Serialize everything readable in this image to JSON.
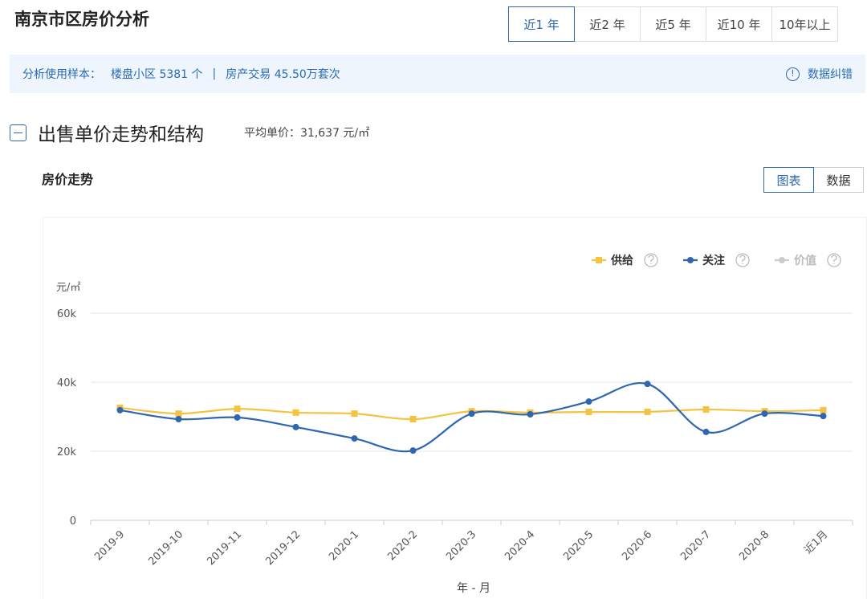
{
  "header": {
    "title": "南京市区房价分析",
    "tabs": [
      "近1 年",
      "近2 年",
      "近5 年",
      "近10 年",
      "10年以上"
    ]
  },
  "info_bar": {
    "sample_label": "分析使用样本：",
    "community": "楼盘小区 5381 个",
    "separator": "|",
    "transactions": "房产交易 45.50万套次",
    "report": "数据纠错"
  },
  "section": {
    "title": "出售单价走势和结构",
    "avg_label": "平均单价：",
    "avg_value": "31,637 元/㎡"
  },
  "subsection": {
    "title": "房价走势",
    "view_tabs": [
      "图表",
      "数据"
    ]
  },
  "chart_data": {
    "type": "line",
    "y_unit": "元/㎡",
    "xlabel": "年 - 月",
    "categories": [
      "2019-9",
      "2019-10",
      "2019-11",
      "2019-12",
      "2020-1",
      "2020-2",
      "2020-3",
      "2020-4",
      "2020-5",
      "2020-6",
      "2020-7",
      "2020-8",
      "近1月"
    ],
    "series": [
      {
        "name": "供给",
        "color": "#f5c242",
        "marker": "square",
        "values": [
          32600,
          30900,
          32300,
          31200,
          30900,
          29300,
          31600,
          31200,
          31400,
          31400,
          32100,
          31600,
          31900
        ]
      },
      {
        "name": "关注",
        "color": "#2e66b0",
        "marker": "circle",
        "values": [
          31900,
          29300,
          29800,
          27000,
          23700,
          20200,
          30900,
          30700,
          34400,
          39500,
          25600,
          30900,
          30200
        ]
      },
      {
        "name": "价值",
        "color": "#cccccc",
        "marker": "circle",
        "values": [
          null,
          null,
          null,
          null,
          null,
          null,
          null,
          null,
          null,
          null,
          null,
          null,
          null
        ]
      }
    ],
    "ylim": [
      0,
      60000
    ],
    "yticks": [
      0,
      {
        "value": 20000,
        "label": "20k"
      },
      {
        "value": 40000,
        "label": "40k"
      },
      {
        "value": 60000,
        "label": "60k"
      }
    ],
    "grid": true,
    "legend": "top-right"
  }
}
